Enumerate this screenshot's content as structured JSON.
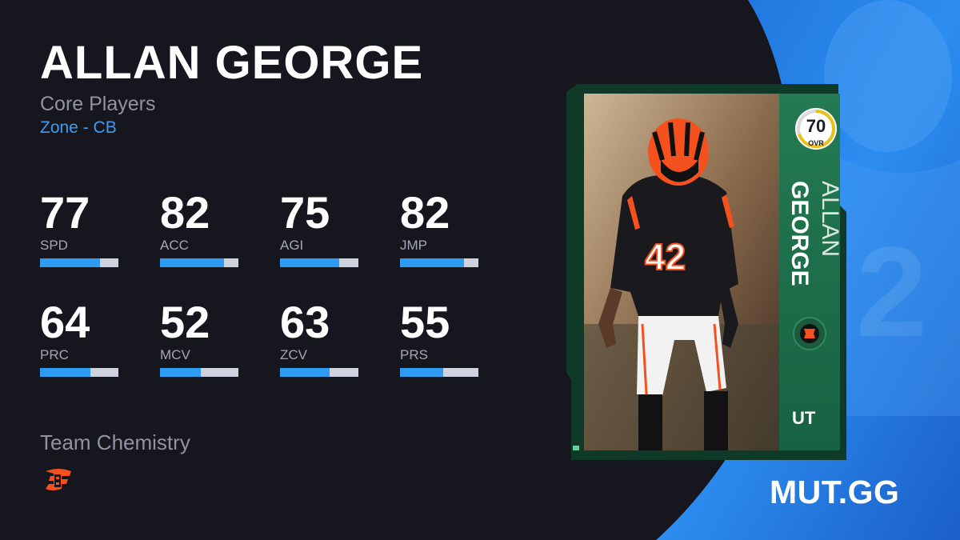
{
  "player": {
    "name": "ALLAN GEORGE",
    "program": "Core Players",
    "archetype": "Zone - CB"
  },
  "stats": [
    {
      "label": "SPD",
      "value": "77",
      "fill": 0.77
    },
    {
      "label": "ACC",
      "value": "82",
      "fill": 0.82
    },
    {
      "label": "AGI",
      "value": "75",
      "fill": 0.75
    },
    {
      "label": "JMP",
      "value": "82",
      "fill": 0.82
    },
    {
      "label": "PRC",
      "value": "64",
      "fill": 0.64
    },
    {
      "label": "MCV",
      "value": "52",
      "fill": 0.52
    },
    {
      "label": "ZCV",
      "value": "63",
      "fill": 0.63
    },
    {
      "label": "PRS",
      "value": "55",
      "fill": 0.55
    }
  ],
  "chemistry": {
    "title": "Team Chemistry",
    "team_icon": "bengals-logo-icon"
  },
  "card": {
    "ovr": "70",
    "ovr_label": "OVR",
    "ovr_fill": 0.7,
    "first_name": "ALLAN",
    "last_name": "GEORGE",
    "jersey_number": "42",
    "badge": "UT",
    "team_icon": "bengals-badge-icon",
    "photo": "player-photo"
  },
  "brand": "MUT.GG",
  "colors": {
    "background": "#15161e",
    "accent_blue": "#2e9cf2",
    "archetype_blue": "#3f9cf0",
    "card_green": "#1f7a4e",
    "ovr_ring": "#e8c21c",
    "bengals_orange": "#f4511e"
  }
}
